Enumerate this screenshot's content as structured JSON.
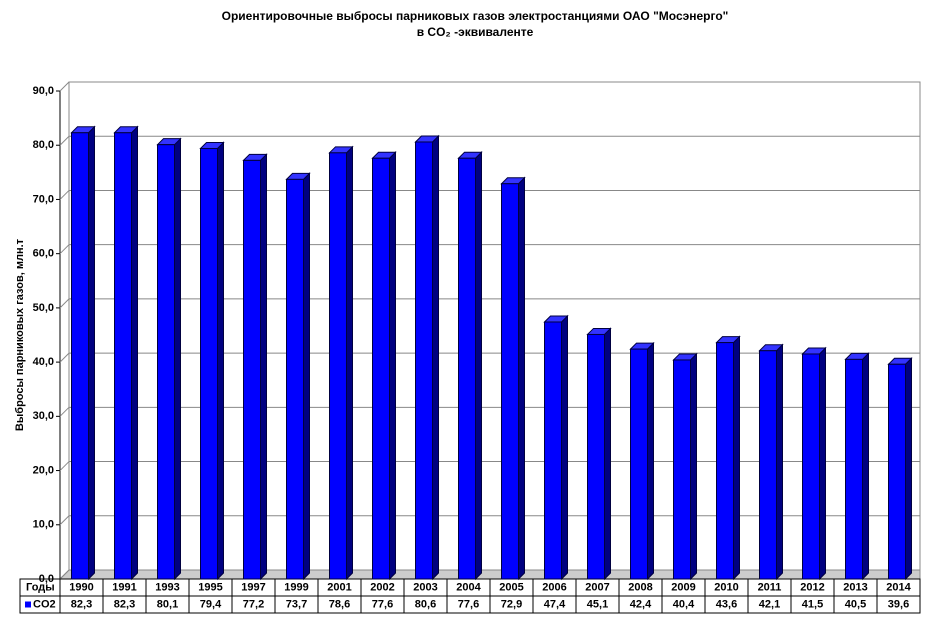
{
  "chart_data": {
    "type": "bar",
    "title": [
      "Ориентировочные выбросы  парниковых газов  электростанциями ОАО \"Мосэнерго\"",
      "в CO₂ -эквиваленте"
    ],
    "y_label": "Выбросы парниковых газов, млн.т",
    "x_label": "Годы",
    "categories": [
      "1990",
      "1991",
      "1993",
      "1995",
      "1997",
      "1999",
      "2001",
      "2002",
      "2003",
      "2004",
      "2005",
      "2006",
      "2007",
      "2008",
      "2009",
      "2010",
      "2011",
      "2012",
      "2013",
      "2014"
    ],
    "series": [
      {
        "name": "CO2",
        "color": "#0000ff",
        "values": [
          82.3,
          82.3,
          80.1,
          79.4,
          77.2,
          73.7,
          78.6,
          77.6,
          80.6,
          77.6,
          72.9,
          47.4,
          45.1,
          42.4,
          40.4,
          43.6,
          42.1,
          41.5,
          40.5,
          39.6
        ],
        "value_labels": [
          "82,3",
          "82,3",
          "80,1",
          "79,4",
          "77,2",
          "73,7",
          "78,6",
          "77,6",
          "80,6",
          "77,6",
          "72,9",
          "47,4",
          "45,1",
          "42,4",
          "40,4",
          "43,6",
          "42,1",
          "41,5",
          "40,5",
          "39,6"
        ]
      }
    ],
    "ylim": [
      0,
      90
    ],
    "yticks": [
      {
        "value": 0,
        "label": "0,0"
      },
      {
        "value": 10,
        "label": "10,0"
      },
      {
        "value": 20,
        "label": "20,0"
      },
      {
        "value": 30,
        "label": "30,0"
      },
      {
        "value": 40,
        "label": "40,0"
      },
      {
        "value": 50,
        "label": "50,0"
      },
      {
        "value": 60,
        "label": "60,0"
      },
      {
        "value": 70,
        "label": "70,0"
      },
      {
        "value": 80,
        "label": "80,0"
      },
      {
        "value": 90,
        "label": "90,0"
      }
    ],
    "grid": true
  }
}
